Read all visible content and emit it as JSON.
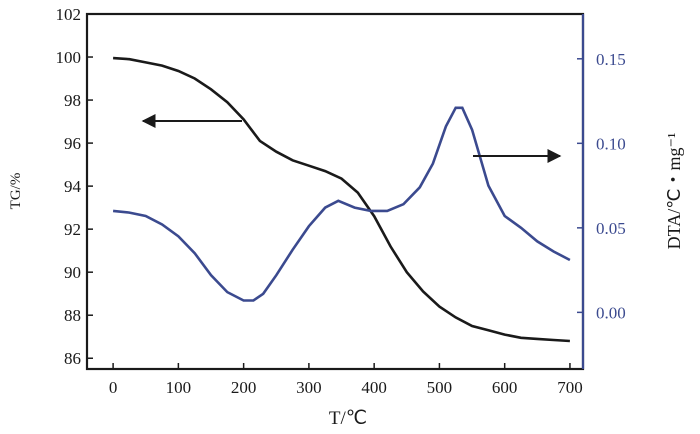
{
  "chart_data": {
    "type": "line",
    "title": "",
    "xlabel": "T/℃",
    "ylabel_left": "TG/%",
    "ylabel_right": "DTA/℃・mg⁻¹",
    "xlim": [
      -40,
      720
    ],
    "ylim_left": [
      85.5,
      102
    ],
    "ylim_right": [
      -0.0335,
      0.1765
    ],
    "x_ticks": [
      "0",
      "100",
      "200",
      "300",
      "400",
      "500",
      "600",
      "700"
    ],
    "y_left_ticks": [
      "86",
      "88",
      "90",
      "92",
      "94",
      "96",
      "98",
      "100",
      "102"
    ],
    "y_right_ticks": [
      "0.00",
      "0.05",
      "0.10",
      "0.15"
    ],
    "grid": false,
    "series": [
      {
        "axis": "left",
        "color": "#1a1a1a",
        "x": [
          0,
          25,
          50,
          75,
          100,
          125,
          150,
          175,
          200,
          225,
          250,
          275,
          300,
          325,
          350,
          375,
          400,
          425,
          450,
          475,
          500,
          525,
          550,
          575,
          600,
          625,
          650,
          675,
          700
        ],
        "values": [
          99.95,
          99.9,
          99.75,
          99.6,
          99.35,
          99.0,
          98.5,
          97.9,
          97.1,
          96.1,
          95.6,
          95.2,
          94.95,
          94.7,
          94.35,
          93.7,
          92.6,
          91.2,
          90.0,
          89.1,
          88.4,
          87.9,
          87.5,
          87.3,
          87.1,
          86.95,
          86.9,
          86.85,
          86.8
        ]
      },
      {
        "axis": "right",
        "color": "#3b4a8f",
        "x": [
          0,
          25,
          50,
          75,
          100,
          125,
          150,
          175,
          200,
          215,
          230,
          250,
          275,
          300,
          325,
          345,
          370,
          395,
          420,
          445,
          470,
          490,
          510,
          525,
          535,
          550,
          575,
          600,
          625,
          650,
          675,
          700
        ],
        "values": [
          0.06,
          0.059,
          0.057,
          0.052,
          0.045,
          0.035,
          0.022,
          0.012,
          0.007,
          0.007,
          0.011,
          0.022,
          0.037,
          0.051,
          0.062,
          0.066,
          0.062,
          0.06,
          0.06,
          0.064,
          0.074,
          0.088,
          0.11,
          0.121,
          0.121,
          0.108,
          0.075,
          0.057,
          0.05,
          0.042,
          0.036,
          0.031
        ]
      }
    ],
    "annotations": [
      {
        "type": "arrow",
        "points_to": "left-axis",
        "series": "TG"
      },
      {
        "type": "arrow",
        "points_to": "right-axis",
        "series": "DTA"
      }
    ]
  }
}
